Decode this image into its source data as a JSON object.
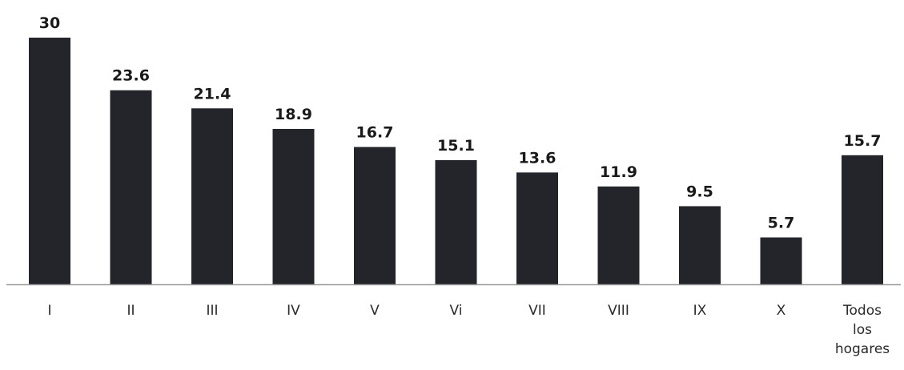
{
  "chart_data": {
    "type": "bar",
    "categories": [
      "I",
      "II",
      "III",
      "IV",
      "V",
      "Vi",
      "VII",
      "VIII",
      "IX",
      "X",
      "Todos los hogares"
    ],
    "category_lines": [
      [
        "I"
      ],
      [
        "II"
      ],
      [
        "III"
      ],
      [
        "IV"
      ],
      [
        "V"
      ],
      [
        "Vi"
      ],
      [
        "VII"
      ],
      [
        "VIII"
      ],
      [
        "IX"
      ],
      [
        "X"
      ],
      [
        "Todos",
        "los",
        "hogares"
      ]
    ],
    "values": [
      30,
      23.6,
      21.4,
      18.9,
      16.7,
      15.1,
      13.6,
      11.9,
      9.5,
      5.7,
      15.7
    ],
    "value_labels": [
      "30",
      "23.6",
      "21.4",
      "18.9",
      "16.7",
      "15.1",
      "13.6",
      "11.9",
      "9.5",
      "5.7",
      "15.7"
    ],
    "ylim": [
      0,
      30
    ],
    "grid": false,
    "legend": "none",
    "colors": {
      "bar": "#24252b",
      "axis": "#9a9a9a",
      "text": "#1a1a1a"
    }
  }
}
